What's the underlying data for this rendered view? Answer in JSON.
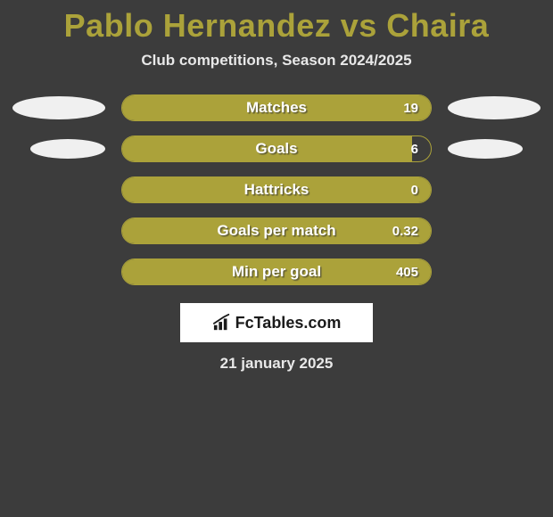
{
  "title": "Pablo Hernandez vs Chaira",
  "subtitle": "Club competitions, Season 2024/2025",
  "date": "21 january 2025",
  "brand": "FcTables.com",
  "colors": {
    "accent": "#aba23a",
    "bar_fill": "#aba23a",
    "bar_border": "#aba23a",
    "background": "#3c3c3c",
    "ellipse": "#f0f0f0",
    "text_light": "#e8e8e8",
    "brand_bg": "#ffffff",
    "brand_text": "#1a1a1a"
  },
  "rows": [
    {
      "label": "Matches",
      "value": "19",
      "fill_pct": 100,
      "left_ellipse": true,
      "left_bigger": true,
      "right_ellipse": true,
      "right_bigger": true
    },
    {
      "label": "Goals",
      "value": "6",
      "fill_pct": 94,
      "left_ellipse": true,
      "left_bigger": false,
      "right_ellipse": true,
      "right_bigger": false
    },
    {
      "label": "Hattricks",
      "value": "0",
      "fill_pct": 100,
      "left_ellipse": false,
      "left_bigger": false,
      "right_ellipse": false,
      "right_bigger": false
    },
    {
      "label": "Goals per match",
      "value": "0.32",
      "fill_pct": 100,
      "left_ellipse": false,
      "left_bigger": false,
      "right_ellipse": false,
      "right_bigger": false
    },
    {
      "label": "Min per goal",
      "value": "405",
      "fill_pct": 100,
      "left_ellipse": false,
      "left_bigger": false,
      "right_ellipse": false,
      "right_bigger": false
    }
  ]
}
